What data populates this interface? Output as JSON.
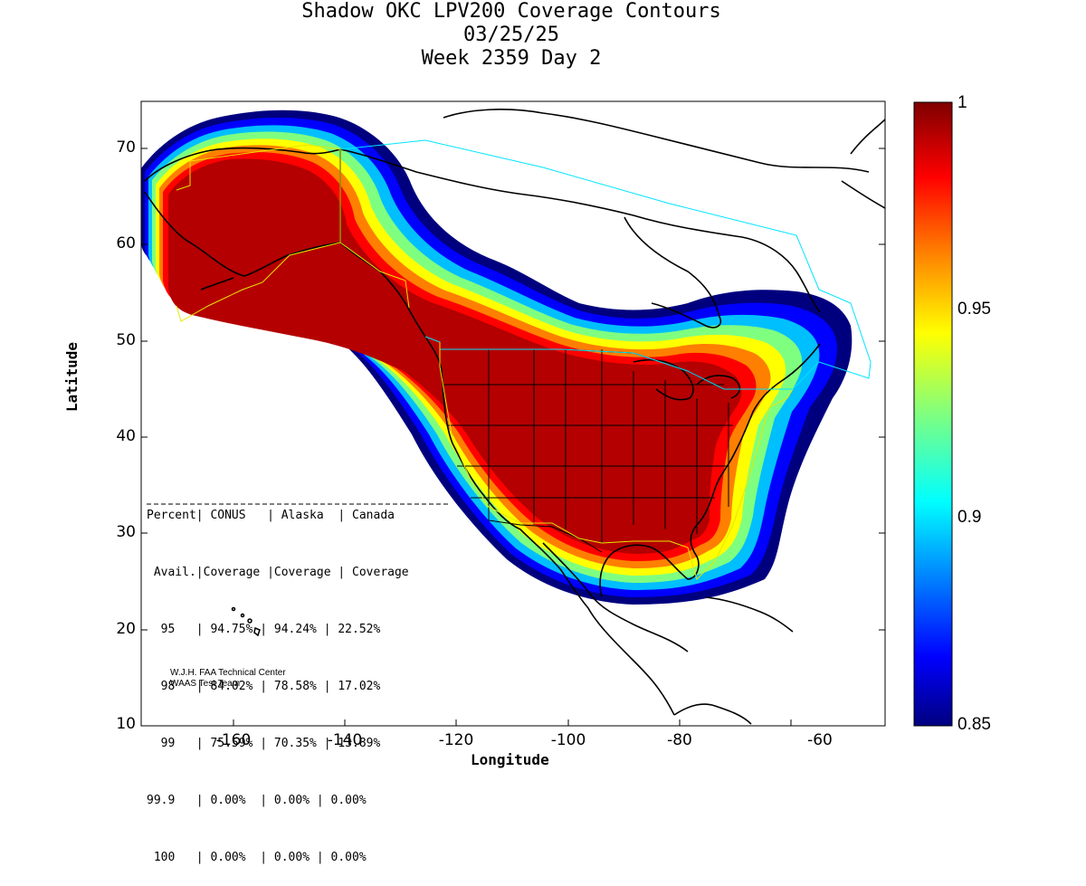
{
  "title": {
    "line1": "Shadow OKC LPV200 Coverage Contours",
    "line2": "03/25/25",
    "line3": "Week 2359 Day 2"
  },
  "axes": {
    "xlabel": "Longitude",
    "ylabel": "Latitude",
    "xticks": [
      "-160",
      "-140",
      "-120",
      "-100",
      "-80",
      "-60"
    ],
    "yticks": [
      "70",
      "60",
      "50",
      "40",
      "30",
      "20",
      "10"
    ],
    "xlim": [
      -175,
      -50
    ],
    "ylim": [
      10,
      75
    ]
  },
  "colorbar": {
    "min": 0.85,
    "max": 1,
    "ticks": [
      "1",
      "0.95",
      "0.9",
      "0.85"
    ],
    "colors": [
      "#00007f",
      "#0000ff",
      "#007fff",
      "#00ffff",
      "#7fff7f",
      "#ffff00",
      "#ff7f00",
      "#ff0000",
      "#7f0000"
    ]
  },
  "table": {
    "header1": [
      "Percent",
      "CONUS",
      "Alaska",
      "Canada"
    ],
    "header2": [
      "Avail.",
      "Coverage",
      "Coverage",
      "Coverage"
    ],
    "rows": [
      {
        "pct": "95",
        "conus": "94.75%",
        "alaska": "94.24%",
        "canada": "22.52%"
      },
      {
        "pct": "98",
        "conus": "84.02%",
        "alaska": "78.58%",
        "canada": "17.02%"
      },
      {
        "pct": "99",
        "conus": "75.59%",
        "alaska": "70.35%",
        "canada": "13.89%"
      },
      {
        "pct": "99.9",
        "conus": "0.00%",
        "alaska": "0.00%",
        "canada": "0.00%"
      },
      {
        "pct": "100",
        "conus": "0.00%",
        "alaska": "0.00%",
        "canada": "0.00%"
      }
    ]
  },
  "credit": {
    "line1": "W.J.H. FAA Technical Center",
    "line2": "WAAS Test Team"
  }
}
